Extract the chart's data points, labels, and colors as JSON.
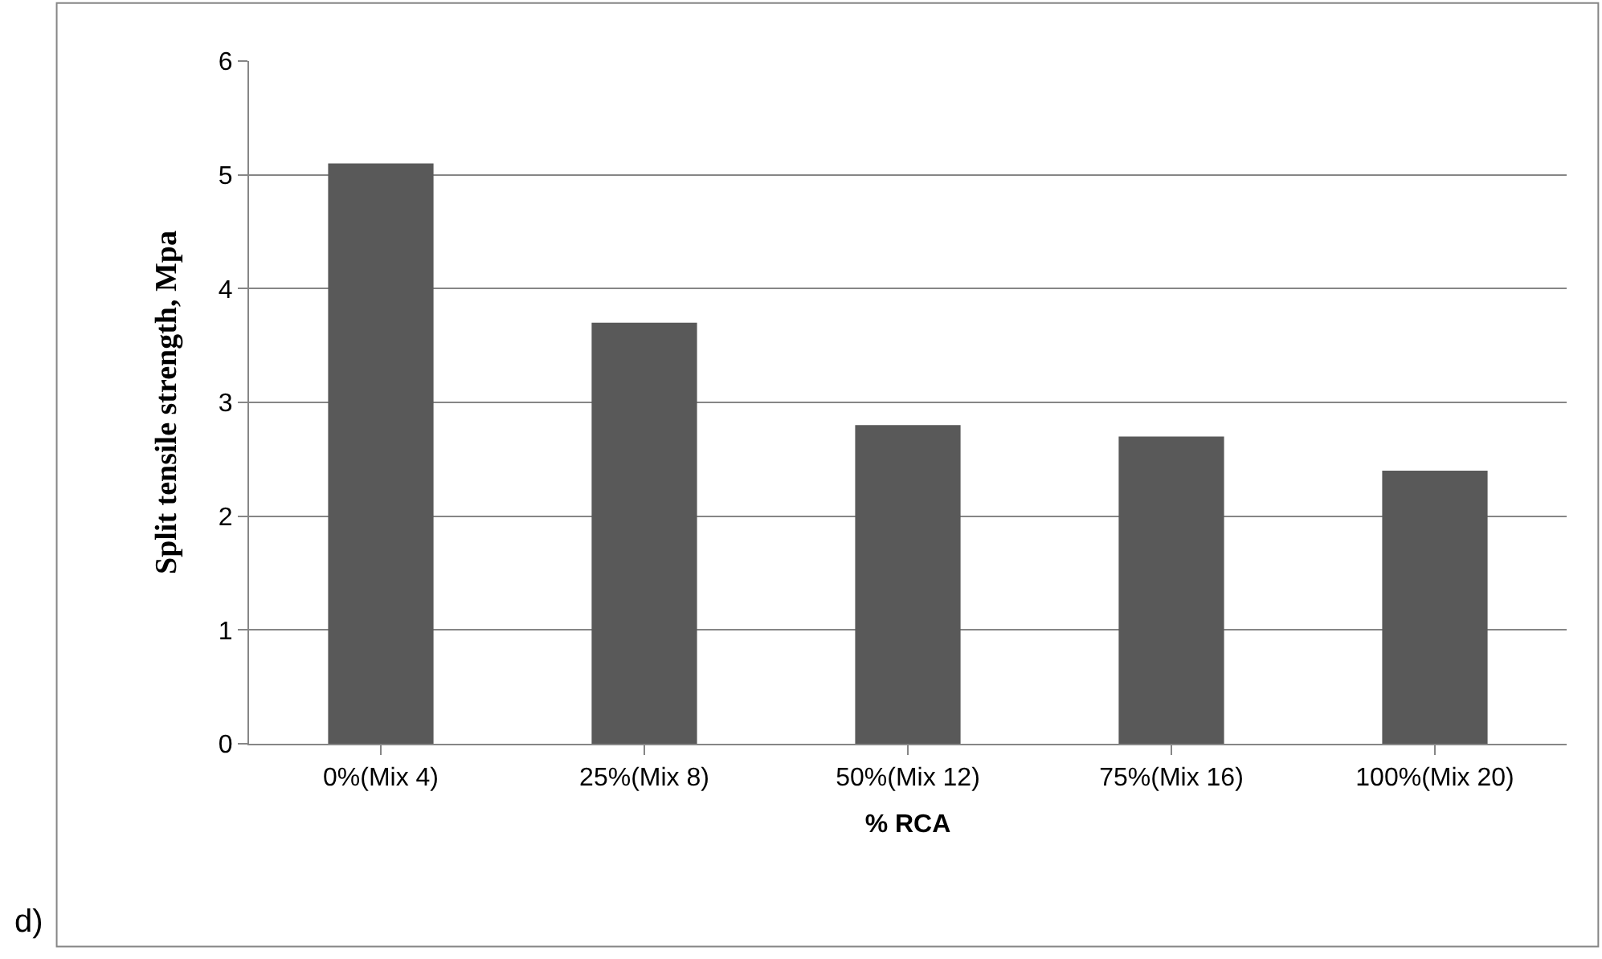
{
  "chart_data": {
    "type": "bar",
    "xlabel": "% RCA",
    "ylabel": "Split tensile strength, Mpa",
    "categories": [
      "0%(Mix 4)",
      "25%(Mix 8)",
      "50%(Mix 12)",
      "75%(Mix 16)",
      "100%(Mix 20)"
    ],
    "values": [
      5.1,
      3.7,
      2.8,
      2.7,
      2.4
    ],
    "color": "#595959",
    "ylim": [
      0,
      6
    ],
    "yticks": [
      0,
      1,
      2,
      3,
      4,
      5,
      6
    ],
    "grid": "y",
    "legend": false,
    "annotations": [
      "d)"
    ]
  }
}
